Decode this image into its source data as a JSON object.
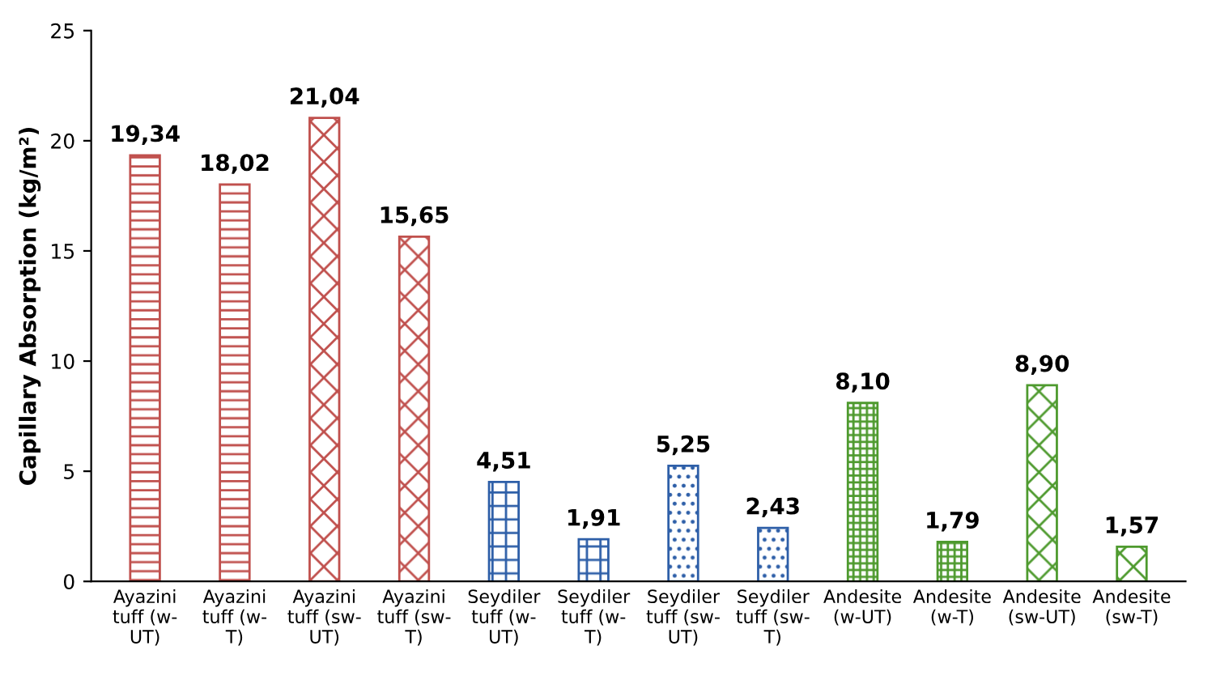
{
  "chart_data": {
    "type": "bar",
    "categories": [
      "Ayazini tuff (w-UT)",
      "Ayazini tuff (w-T)",
      "Ayazini tuff (sw-UT)",
      "Ayazini tuff (sw-T)",
      "Seydiler tuff (w-UT)",
      "Seydiler tuff (w-T)",
      "Seydiler tuff (sw-UT)",
      "Seydiler tuff (sw-T)",
      "Andesite (w-UT)",
      "Andesite (w-T)",
      "Andesite (sw-UT)",
      "Andesite (sw-T)"
    ],
    "values": [
      19.34,
      18.02,
      21.04,
      15.65,
      4.51,
      1.91,
      5.25,
      2.43,
      8.1,
      1.79,
      8.9,
      1.57
    ],
    "value_labels": [
      "19,34",
      "18,02",
      "21,04",
      "15,65",
      "4,51",
      "1,91",
      "5,25",
      "2,43",
      "8,10",
      "1,79",
      "8,90",
      "1,57"
    ],
    "colors": [
      "#c0504d",
      "#c0504d",
      "#c0504d",
      "#c0504d",
      "#2e5fa8",
      "#2e5fa8",
      "#2e5fa8",
      "#2e5fa8",
      "#4e9a2e",
      "#4e9a2e",
      "#4e9a2e",
      "#4e9a2e"
    ],
    "ylabel": "Capillary Absorption (kg/m²)",
    "ylim": [
      0,
      25
    ],
    "yticks": [
      0,
      5,
      10,
      15,
      20,
      25
    ],
    "grid": false,
    "legend": false
  }
}
